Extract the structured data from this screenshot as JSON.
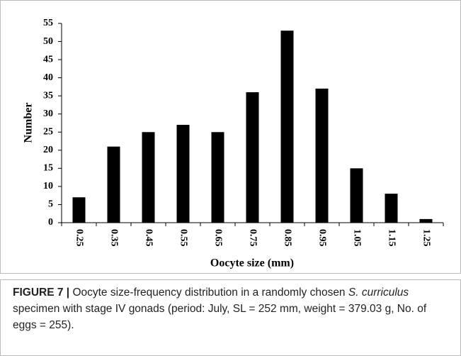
{
  "chart_data": {
    "type": "bar",
    "y_label": "Number",
    "x_label": "Oocyte size (mm)",
    "categories": [
      "0.25",
      "0.35",
      "0.45",
      "0.55",
      "0.65",
      "0.75",
      "0.85",
      "0.95",
      "1.05",
      "1.15",
      "1.25"
    ],
    "values": [
      7,
      21,
      25,
      27,
      25,
      36,
      53,
      37,
      15,
      8,
      1
    ],
    "color": "#000000",
    "ylim": [
      0,
      55
    ],
    "yticks": [
      0,
      5,
      10,
      15,
      20,
      25,
      30,
      35,
      40,
      45,
      50,
      55
    ],
    "grid": false
  },
  "caption": {
    "label": "FIGURE 7 |",
    "segments": [
      " Oocyte size-frequency distribution in a randomly chosen ",
      "S. curriculus",
      " specimen with stage IV gonads (period: July, SL = 252 mm, weight = 379.03 g, No. of eggs = 255)."
    ]
  }
}
